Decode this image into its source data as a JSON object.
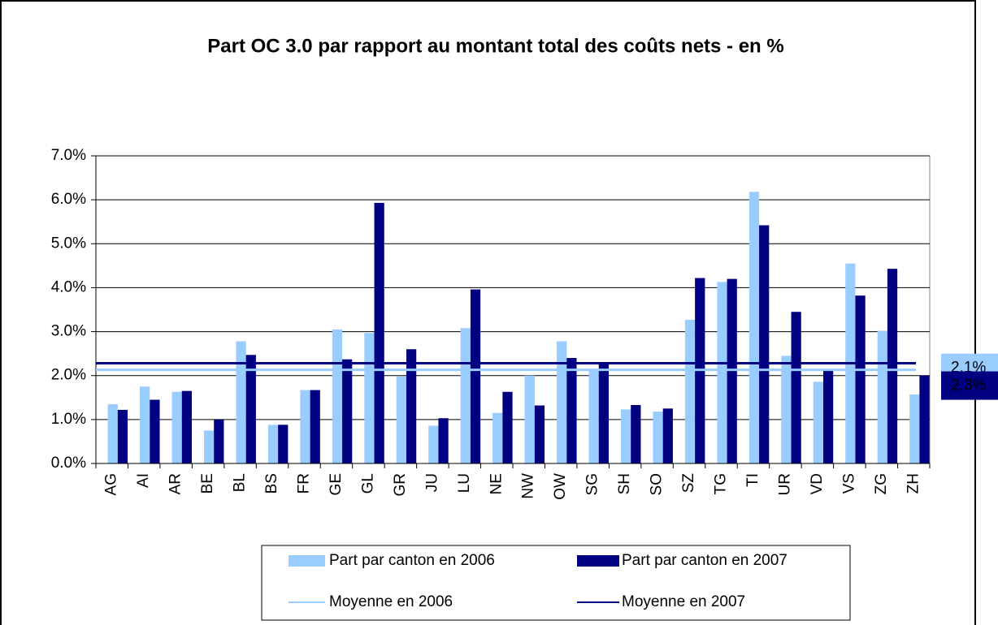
{
  "chart_data": {
    "type": "bar",
    "title": "Part OC 3.0 par rapport au montant total des coûts nets - en %",
    "categories": [
      "AG",
      "AI",
      "AR",
      "BE",
      "BL",
      "BS",
      "FR",
      "GE",
      "GL",
      "GR",
      "JU",
      "LU",
      "NE",
      "NW",
      "OW",
      "SG",
      "SH",
      "SO",
      "SZ",
      "TG",
      "TI",
      "UR",
      "VD",
      "VS",
      "ZG",
      "ZH"
    ],
    "series": [
      {
        "name": "Part par canton en 2006",
        "color": "#99ccff",
        "values": [
          1.35,
          1.75,
          1.63,
          0.75,
          2.78,
          0.88,
          1.67,
          3.05,
          2.97,
          1.98,
          0.86,
          3.08,
          1.15,
          2.0,
          2.78,
          2.15,
          1.23,
          1.18,
          3.27,
          4.13,
          6.18,
          2.45,
          1.86,
          4.55,
          3.02,
          1.57
        ]
      },
      {
        "name": "Part par canton en 2007",
        "color": "#000080",
        "values": [
          1.22,
          1.45,
          1.65,
          1.0,
          2.47,
          0.88,
          1.67,
          2.37,
          5.93,
          2.6,
          1.03,
          3.96,
          1.63,
          1.32,
          2.4,
          2.28,
          1.33,
          1.25,
          4.22,
          4.2,
          5.42,
          3.45,
          2.12,
          3.82,
          4.43,
          2.0
        ]
      },
      {
        "name": "Moyenne en 2006",
        "type": "hline",
        "color": "#99ccff",
        "value": 2.13,
        "value_label": "2.1%"
      },
      {
        "name": "Moyenne en 2007",
        "type": "hline",
        "color": "#000080",
        "value": 2.28,
        "value_label": "2.3%"
      }
    ],
    "ylim": [
      0,
      7
    ],
    "yticks": [
      {
        "value": 0,
        "label": "0.0%"
      },
      {
        "value": 1,
        "label": "1.0%"
      },
      {
        "value": 2,
        "label": "2.0%"
      },
      {
        "value": 3,
        "label": "3.0%"
      },
      {
        "value": 4,
        "label": "4.0%"
      },
      {
        "value": 5,
        "label": "5.0%"
      },
      {
        "value": 6,
        "label": "6.0%"
      },
      {
        "value": 7,
        "label": "7.0%"
      }
    ],
    "grid": true,
    "legend": "bottom"
  }
}
